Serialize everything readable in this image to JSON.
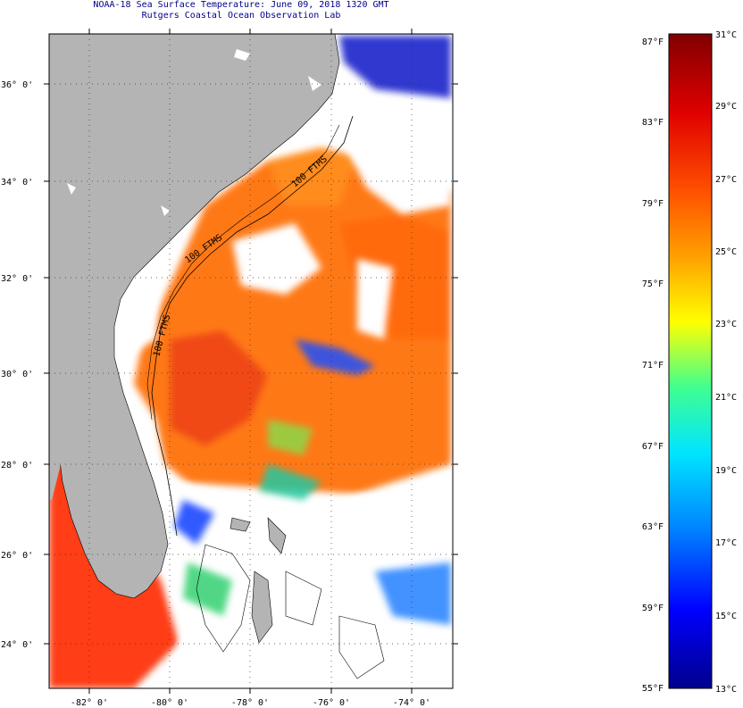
{
  "title_line1": "NOAA-18 Sea Surface Temperature:  June 09, 2018 1320 GMT",
  "title_line2": "Rutgers Coastal Ocean Observation Lab",
  "map": {
    "lat_labels": [
      "36° 0'",
      "34° 0'",
      "32° 0'",
      "30° 0'",
      "28° 0'",
      "26° 0'",
      "24° 0'"
    ],
    "lon_labels": [
      "-82° 0'",
      "-80° 0'",
      "-78° 0'",
      "-76° 0'",
      "-74° 0'"
    ],
    "contour_labels": [
      "100 FTMS",
      "100 FTMS",
      "100 FTMS"
    ],
    "colors": {
      "land": "#b4b4b4",
      "cloud": "#ffffff",
      "frame": "#000000"
    }
  },
  "colorbar": {
    "fahrenheit_labels": [
      "87°F",
      "83°F",
      "79°F",
      "75°F",
      "71°F",
      "67°F",
      "63°F",
      "59°F",
      "55°F"
    ],
    "celsius_labels": [
      "31°C",
      "29°C",
      "27°C",
      "25°C",
      "23°C",
      "21°C",
      "19°C",
      "17°C",
      "15°C",
      "13°C"
    ],
    "stops": [
      "#00008b",
      "#0000ff",
      "#0080ff",
      "#00e5ff",
      "#40ff90",
      "#ffff00",
      "#ffa000",
      "#ff5000",
      "#e00000",
      "#800000"
    ]
  }
}
